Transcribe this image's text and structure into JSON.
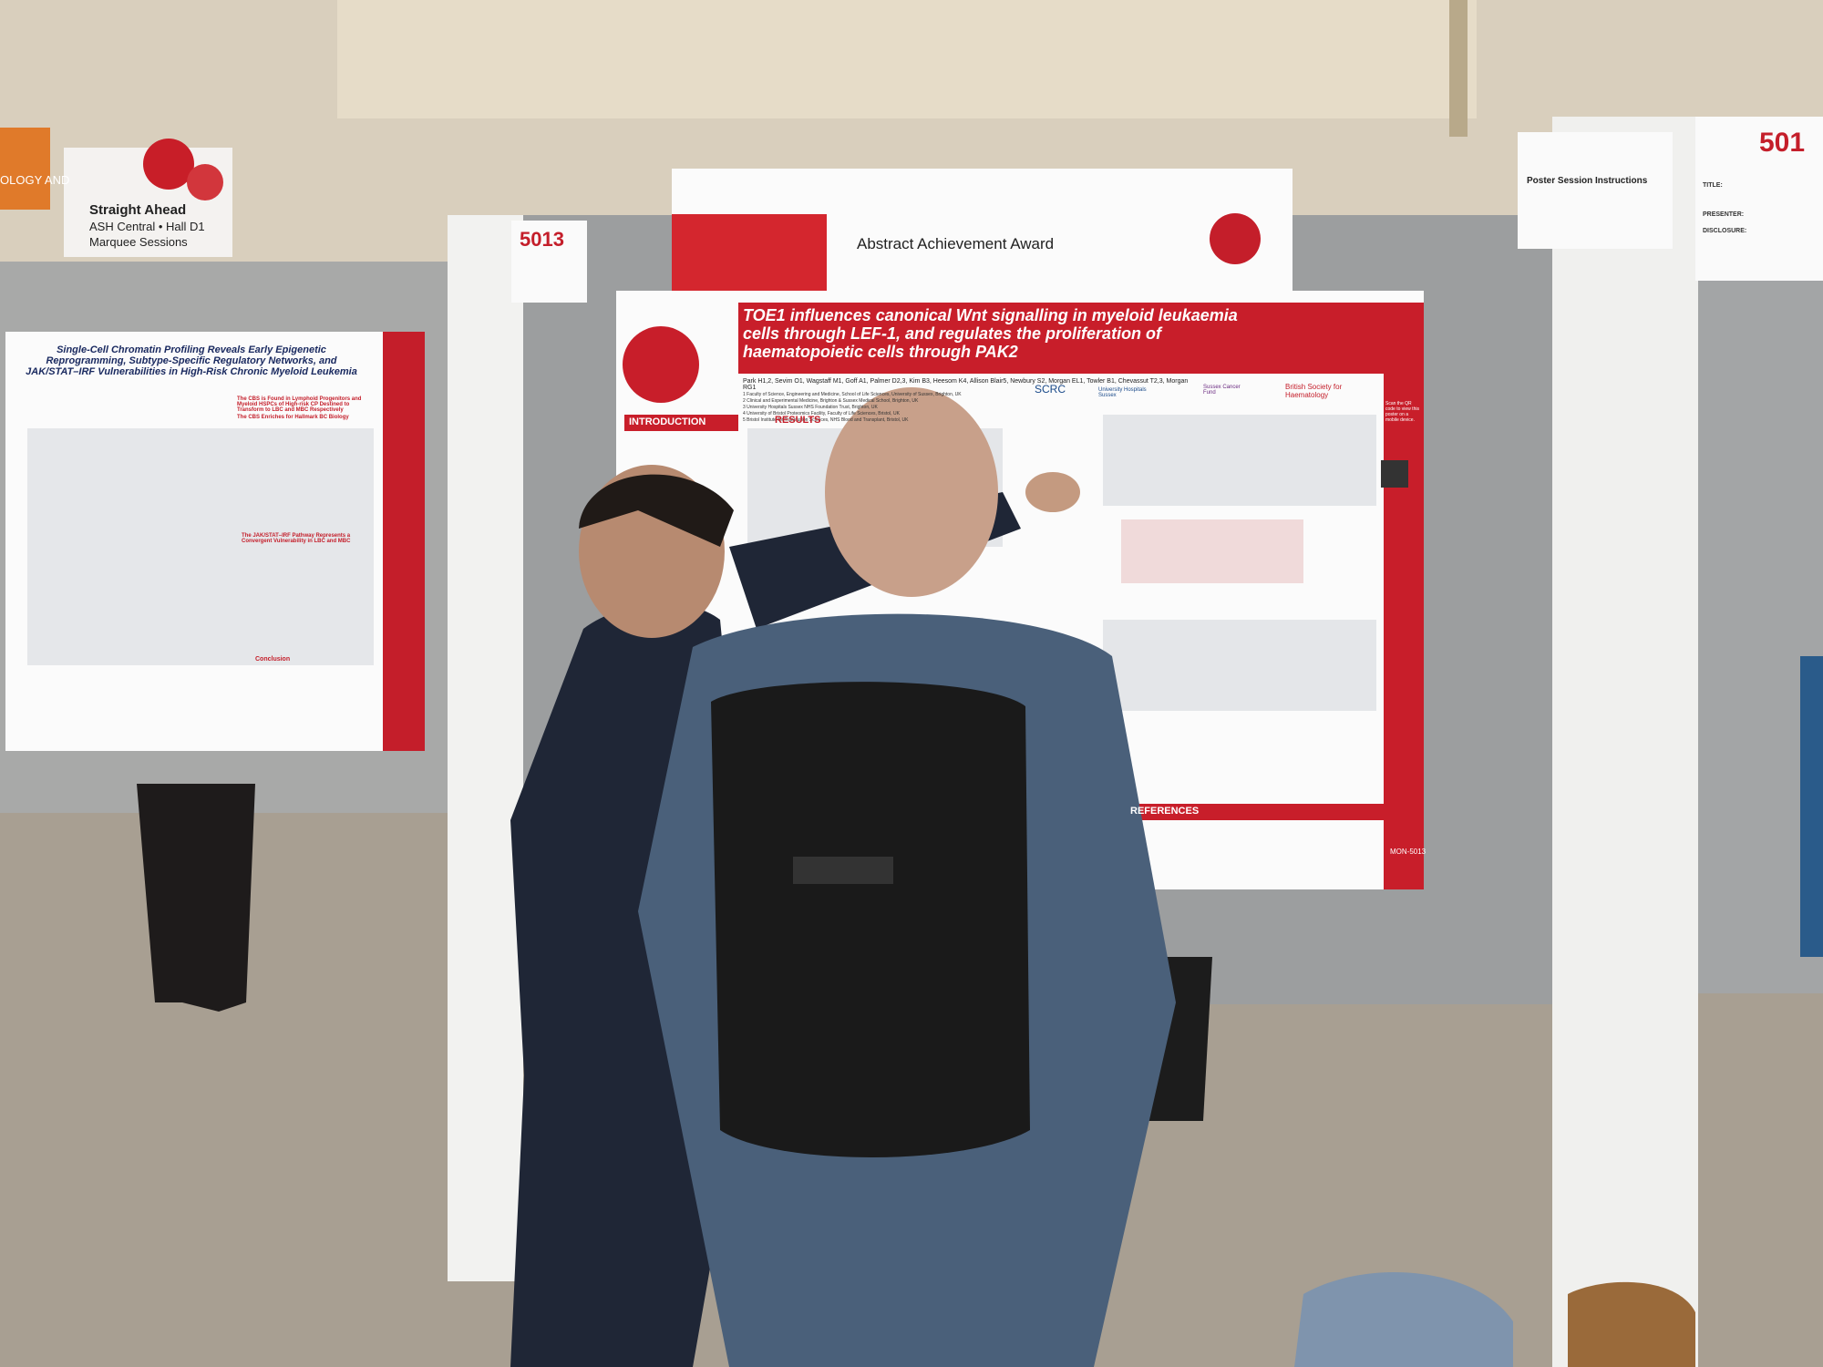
{
  "signs": {
    "hall": {
      "line1": "Straight Ahead",
      "line2": "ASH Central • Hall D1",
      "line3": "Marquee Sessions"
    },
    "edge": "OLOGY AND"
  },
  "left_poster": {
    "title": "Single-Cell Chromatin Profiling Reveals Early Epigenetic Reprogramming, Subtype-Specific Regulatory Networks, and JAK/STAT–IRF Vulnerabilities in High-Risk Chronic Myeloid Leukemia",
    "sections": [
      "The CBS is Found in Lymphoid Progenitors and Myeloid HSPCs of High-risk CP Destined to Transform to LBC and MBC Respectively",
      "The CBS Enriches for Hallmark BC Biology",
      "The JAK/STAT–IRF Pathway Represents a Convergent Vulnerability in LBC and MBC",
      "Conclusion"
    ]
  },
  "placard": {
    "number": "5013",
    "award": "Abstract Achievement Award"
  },
  "main_poster": {
    "title": "TOE1 influences canonical Wnt signalling in myeloid leukaemia cells through LEF-1, and regulates the proliferation of haematopoietic cells through PAK2",
    "authors": "Park H1,2, Sevim O1, Wagstaff M1, Goff A1, Palmer D2,3, Kim B3, Heesom K4, Allison Blair5, Newbury S2, Morgan EL1, Towler B1, Chevassut T2,3, Morgan RG1",
    "affiliations": [
      "1 Faculty of Science, Engineering and Medicine, School of Life Sciences, University of Sussex, Brighton, UK",
      "2 Clinical and Experimental Medicine, Brighton & Sussex Medical School, Brighton, UK",
      "3 University Hospitals Sussex NHS Foundation Trust, Brighton, UK",
      "4 University of Bristol Proteomics Facility, Faculty of Life Sciences, Bristol, UK",
      "5 Bristol Institute for Transfusion Sciences, NHS Blood and Transplant, Bristol, UK"
    ],
    "logos": [
      "SCRC",
      "University Hospitals Sussex",
      "Sussex Cancer Fund",
      "British Society for Haematology"
    ],
    "sections": [
      "INTRODUCTION",
      "RESULTS",
      "REFERENCES"
    ],
    "qr_note": "Scan the QR code to view this poster on a mobile device.",
    "code": "MON-5013"
  },
  "right_sign": {
    "heading": "Poster Session Instructions",
    "number": "501",
    "fields": [
      "TITLE:",
      "PRESENTER:",
      "DISCLOSURE:"
    ]
  }
}
